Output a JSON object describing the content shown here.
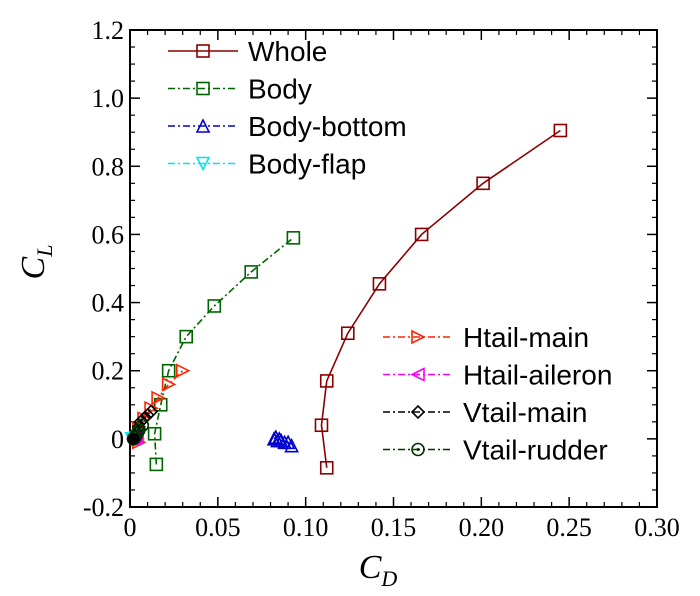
{
  "chart_data": {
    "type": "line",
    "xlabel": "C",
    "xlabel_sub": "D",
    "ylabel": "C",
    "ylabel_sub": "L",
    "xlim": [
      0,
      0.3
    ],
    "ylim": [
      -0.2,
      1.2
    ],
    "x_ticks": [
      0,
      0.05,
      0.1,
      0.15,
      0.2,
      0.25,
      0.3
    ],
    "x_tick_labels": [
      "0",
      "0.05",
      "0.10",
      "0.15",
      "0.20",
      "0.25",
      "0.30"
    ],
    "y_ticks": [
      -0.2,
      0,
      0.2,
      0.4,
      0.6,
      0.8,
      1.0,
      1.2
    ],
    "y_tick_labels": [
      "-0.2",
      "0",
      "0.2",
      "0.4",
      "0.6",
      "0.8",
      "1.0",
      "1.2"
    ],
    "grid": false,
    "legend_placement": [
      "top-left",
      "right-middle"
    ],
    "series": [
      {
        "name": "Whole",
        "color": "#8B0000",
        "marker": "square",
        "dash": "solid",
        "x": [
          0.112,
          0.109,
          0.112,
          0.124,
          0.142,
          0.166,
          0.201,
          0.245
        ],
        "y": [
          -0.085,
          0.04,
          0.17,
          0.31,
          0.455,
          0.6,
          0.75,
          0.905
        ]
      },
      {
        "name": "Body",
        "color": "#006400",
        "marker": "square",
        "dash": "dashdot",
        "x": [
          0.015,
          0.014,
          0.0175,
          0.022,
          0.032,
          0.048,
          0.069,
          0.093
        ],
        "y": [
          -0.075,
          0.015,
          0.1,
          0.2,
          0.3,
          0.39,
          0.49,
          0.59
        ]
      },
      {
        "name": "Body-bottom",
        "color": "#0000CD",
        "marker": "triangle-up",
        "dash": "dashdot",
        "x": [
          0.082,
          0.083,
          0.084,
          0.085,
          0.086,
          0.088,
          0.09,
          0.092
        ],
        "y": [
          0.0,
          0.005,
          -0.005,
          0.0,
          -0.005,
          -0.01,
          -0.01,
          -0.02
        ]
      },
      {
        "name": "Body-flap",
        "color": "#00E5EE",
        "marker": "triangle-down",
        "dash": "dashdot",
        "x": [
          0.001,
          0.002,
          0.003,
          0.004
        ],
        "y": [
          0.0,
          0.0,
          0.002,
          0.003
        ]
      },
      {
        "name": "Htail-main",
        "color": "#FF2000",
        "marker": "triangle-right",
        "dash": "dashdot",
        "x": [
          0.005,
          0.004,
          0.005,
          0.008,
          0.012,
          0.016,
          0.022,
          0.03
        ],
        "y": [
          -0.01,
          0.0,
          0.03,
          0.06,
          0.09,
          0.12,
          0.16,
          0.2
        ]
      },
      {
        "name": "Htail-aileron",
        "color": "#FF00FF",
        "marker": "triangle-left",
        "dash": "dashdot",
        "x": [
          0.002,
          0.003,
          0.004
        ],
        "y": [
          0.0,
          0.003,
          0.005
        ]
      },
      {
        "name": "Vtail-main",
        "color": "#000000",
        "marker": "diamond",
        "dash": "dashdot",
        "x": [
          0.003,
          0.004,
          0.005,
          0.006,
          0.008,
          0.01,
          0.012
        ],
        "y": [
          0.01,
          0.02,
          0.035,
          0.05,
          0.06,
          0.07,
          0.08
        ]
      },
      {
        "name": "Vtail-rudder",
        "color": "#003300",
        "marker": "circle-dot",
        "dash": "dashdot",
        "x": [
          0.002,
          0.003,
          0.004,
          0.005,
          0.007
        ],
        "y": [
          0.0,
          0.005,
          0.015,
          0.025,
          0.04
        ]
      }
    ]
  }
}
